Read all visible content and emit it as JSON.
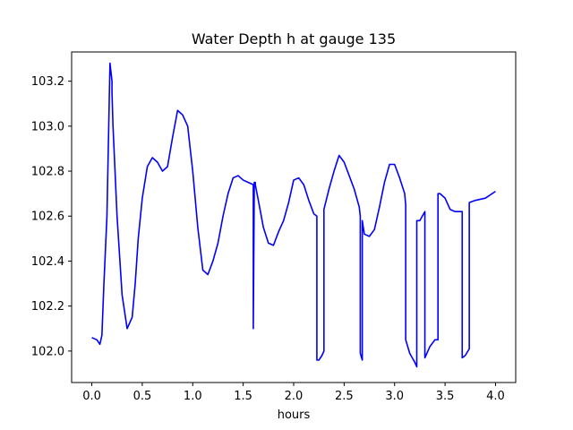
{
  "chart_data": {
    "type": "line",
    "title": "Water Depth h at gauge 135",
    "xlabel": "hours",
    "ylabel": "",
    "xlim": [
      -0.2,
      4.2
    ],
    "ylim": [
      101.86,
      103.33
    ],
    "xticks": [
      0.0,
      0.5,
      1.0,
      1.5,
      2.0,
      2.5,
      3.0,
      3.5,
      4.0
    ],
    "xtick_labels": [
      "0.0",
      "0.5",
      "1.0",
      "1.5",
      "2.0",
      "2.5",
      "3.0",
      "3.5",
      "4.0"
    ],
    "yticks": [
      102.0,
      102.2,
      102.4,
      102.6,
      102.8,
      103.0,
      103.2
    ],
    "ytick_labels": [
      "102.0",
      "102.2",
      "102.4",
      "102.6",
      "102.8",
      "103.0",
      "103.2"
    ],
    "grid": false,
    "series": [
      {
        "color": "#0000ff",
        "x": [
          0.0,
          0.05,
          0.08,
          0.1,
          0.12,
          0.15,
          0.18,
          0.2,
          0.2,
          0.21,
          0.22,
          0.25,
          0.3,
          0.35,
          0.4,
          0.43,
          0.46,
          0.5,
          0.55,
          0.6,
          0.65,
          0.7,
          0.75,
          0.8,
          0.85,
          0.9,
          0.95,
          1.0,
          1.05,
          1.1,
          1.15,
          1.2,
          1.25,
          1.3,
          1.35,
          1.4,
          1.45,
          1.5,
          1.55,
          1.6,
          1.6,
          1.61,
          1.62,
          1.62,
          1.65,
          1.7,
          1.75,
          1.8,
          1.85,
          1.9,
          1.95,
          2.0,
          2.05,
          2.1,
          2.15,
          2.2,
          2.23,
          2.23,
          2.25,
          2.28,
          2.3,
          2.3,
          2.35,
          2.4,
          2.45,
          2.5,
          2.55,
          2.6,
          2.65,
          2.66,
          2.66,
          2.68,
          2.68,
          2.7,
          2.75,
          2.8,
          2.85,
          2.9,
          2.95,
          3.0,
          3.05,
          3.1,
          3.11,
          3.11,
          3.15,
          3.2,
          3.22,
          3.22,
          3.25,
          3.3,
          3.3,
          3.35,
          3.4,
          3.43,
          3.43,
          3.45,
          3.5,
          3.55,
          3.6,
          3.65,
          3.67,
          3.67,
          3.7,
          3.74,
          3.74,
          3.8,
          3.9,
          4.0
        ],
        "y": [
          102.06,
          102.05,
          102.03,
          102.07,
          102.3,
          102.6,
          103.28,
          103.2,
          103.15,
          103.0,
          102.9,
          102.6,
          102.25,
          102.1,
          102.15,
          102.3,
          102.5,
          102.68,
          102.82,
          102.86,
          102.84,
          102.8,
          102.82,
          102.95,
          103.07,
          103.05,
          103.0,
          102.8,
          102.55,
          102.36,
          102.34,
          102.4,
          102.48,
          102.6,
          102.7,
          102.77,
          102.78,
          102.76,
          102.75,
          102.74,
          102.1,
          102.75,
          102.75,
          102.74,
          102.67,
          102.55,
          102.48,
          102.47,
          102.53,
          102.58,
          102.66,
          102.76,
          102.77,
          102.74,
          102.67,
          102.61,
          102.6,
          101.96,
          101.96,
          101.98,
          102.0,
          102.63,
          102.72,
          102.8,
          102.87,
          102.84,
          102.78,
          102.72,
          102.64,
          102.6,
          101.99,
          101.96,
          102.58,
          102.52,
          102.51,
          102.54,
          102.64,
          102.75,
          102.83,
          102.83,
          102.77,
          102.7,
          102.65,
          102.05,
          101.99,
          101.95,
          101.93,
          102.58,
          102.58,
          102.62,
          101.97,
          102.02,
          102.05,
          102.05,
          102.7,
          102.7,
          102.68,
          102.63,
          102.62,
          102.62,
          102.62,
          101.97,
          101.98,
          102.01,
          102.66,
          102.67,
          102.68,
          102.71
        ]
      }
    ]
  }
}
